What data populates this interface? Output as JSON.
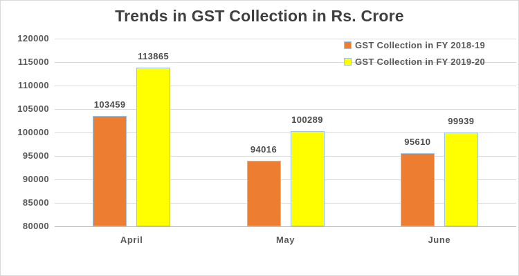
{
  "chart_data": {
    "type": "bar",
    "title": "Trends in GST Collection in Rs. Crore",
    "categories": [
      "April",
      "May",
      "June"
    ],
    "series": [
      {
        "name": "GST Collection in FY 2018-19",
        "color": "#ED7D31",
        "values": [
          103459,
          94016,
          95610
        ]
      },
      {
        "name": "GST Collection in FY 2019-20",
        "color": "#FFFF00",
        "values": [
          113865,
          100289,
          99939
        ]
      }
    ],
    "ylim": [
      80000,
      120000
    ],
    "ytick_step": 5000,
    "yticks": [
      120000,
      115000,
      110000,
      105000,
      100000,
      95000,
      90000,
      85000,
      80000
    ],
    "grid": true,
    "legend_position": "top-right",
    "colors": {
      "bar_border": "#9DC3E6",
      "gridline": "#D9D9D9",
      "axis_line": "#BFBFBF",
      "text": "#595959",
      "title": "#404040",
      "background": "#FFFFFF",
      "frame_border": "#D9D9D9"
    }
  }
}
